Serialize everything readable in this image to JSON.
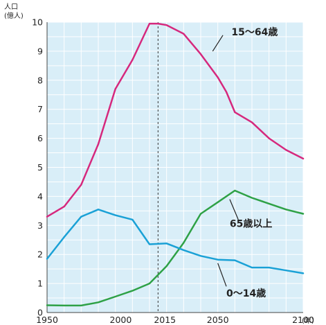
{
  "chart_data": {
    "type": "line",
    "ylabel": "人口\n(億人)",
    "xunit": "(年)",
    "xlim": [
      1950,
      2100
    ],
    "ylim": [
      0,
      10
    ],
    "yticks": [
      0,
      1,
      2,
      3,
      4,
      5,
      6,
      7,
      8,
      9,
      10
    ],
    "xticks": [
      1950,
      2000,
      2015,
      2050,
      2100
    ],
    "grid": true,
    "marker_year": 2015,
    "colors": {
      "background": "#d9eef8",
      "grid": "#ffffff"
    },
    "series": [
      {
        "name": "15〜64歳",
        "color": "#d6287d",
        "x": [
          1950,
          1960,
          1970,
          1980,
          1990,
          2000,
          2010,
          2015,
          2020,
          2030,
          2040,
          2050,
          2055,
          2060,
          2070,
          2080,
          2090,
          2100
        ],
        "y": [
          3.3,
          3.65,
          4.4,
          5.8,
          7.7,
          8.7,
          9.95,
          9.95,
          9.9,
          9.6,
          8.9,
          8.1,
          7.6,
          6.9,
          6.55,
          6.0,
          5.6,
          5.3
        ]
      },
      {
        "name": "65歳以上",
        "color": "#2ea146",
        "x": [
          1950,
          1960,
          1970,
          1980,
          1990,
          2000,
          2010,
          2020,
          2030,
          2040,
          2050,
          2060,
          2070,
          2080,
          2090,
          2100
        ],
        "y": [
          0.25,
          0.24,
          0.24,
          0.35,
          0.55,
          0.75,
          1.0,
          1.6,
          2.4,
          3.4,
          3.8,
          4.2,
          3.95,
          3.75,
          3.55,
          3.4
        ]
      },
      {
        "name": "0〜14歳",
        "color": "#1aa1d6",
        "x": [
          1950,
          1960,
          1970,
          1980,
          1990,
          2000,
          2010,
          2020,
          2030,
          2040,
          2050,
          2060,
          2070,
          2080,
          2090,
          2100
        ],
        "y": [
          1.85,
          2.6,
          3.3,
          3.55,
          3.35,
          3.2,
          2.35,
          2.38,
          2.15,
          1.95,
          1.82,
          1.8,
          1.55,
          1.55,
          1.45,
          1.35
        ]
      }
    ]
  }
}
